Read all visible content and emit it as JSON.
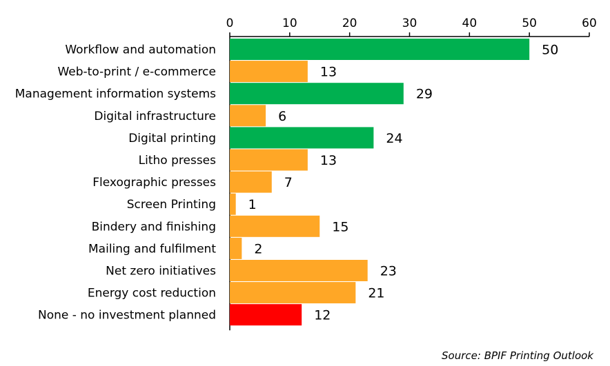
{
  "chart_data": {
    "type": "bar",
    "orientation": "horizontal",
    "categories": [
      "Workflow and automation",
      "Web-to-print / e-commerce",
      "Management information systems",
      "Digital infrastructure",
      "Digital printing",
      "Litho presses",
      "Flexographic presses",
      "Screen Printing",
      "Bindery and finishing",
      "Mailing and fulfilment",
      "Net zero initiatives",
      "Energy cost reduction",
      "None - no investment planned"
    ],
    "values": [
      50,
      13,
      29,
      6,
      24,
      13,
      7,
      1,
      15,
      2,
      23,
      21,
      12
    ],
    "bar_colors": [
      "#00b050",
      "#ffa726",
      "#00b050",
      "#ffa726",
      "#00b050",
      "#ffa726",
      "#ffa726",
      "#ffa726",
      "#ffa726",
      "#ffa726",
      "#ffa726",
      "#ffa726",
      "#ff0000"
    ],
    "xlim": [
      0,
      60
    ],
    "xticks": [
      0,
      10,
      20,
      30,
      40,
      50,
      60
    ],
    "x_axis_position": "top",
    "grid": false,
    "data_labels": true
  },
  "source": "Source: BPIF Printing Outlook"
}
